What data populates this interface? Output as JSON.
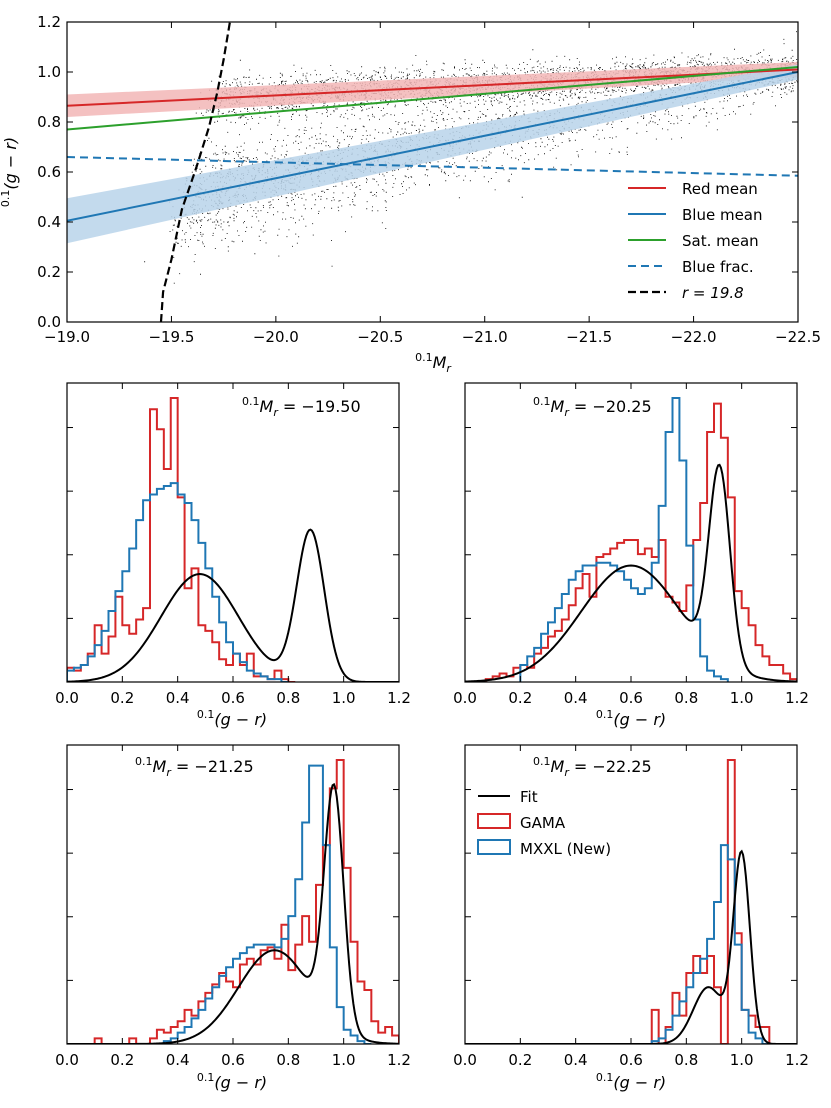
{
  "figure": {
    "title": ""
  },
  "chart_data": [
    {
      "id": "main",
      "type": "scatter",
      "xlabel_sup": "0.1",
      "xlabel_main": "M",
      "xlabel_sub": "r",
      "ylabel_sup": "0.1",
      "ylabel_main": "(g − r)",
      "xlim": [
        -19.0,
        -22.5
      ],
      "ylim": [
        0.0,
        1.2
      ],
      "xticks": [
        -19.0,
        -19.5,
        -20.0,
        -20.5,
        -21.0,
        -21.5,
        -22.0,
        -22.5
      ],
      "xtick_labels": [
        "−19.0",
        "−19.5",
        "−20.0",
        "−20.5",
        "−21.0",
        "−21.5",
        "−22.0",
        "−22.5"
      ],
      "yticks": [
        0.0,
        0.2,
        0.4,
        0.6,
        0.8,
        1.0,
        1.2
      ],
      "ytick_labels": [
        "0.0",
        "0.2",
        "0.4",
        "0.6",
        "0.8",
        "1.0",
        "1.2"
      ],
      "series": [
        {
          "name": "Red mean",
          "style": "solid",
          "color": "#d62728",
          "x": [
            -19.0,
            -22.5
          ],
          "y": [
            0.865,
            1.01
          ],
          "band_half_width": [
            0.045,
            0.03
          ]
        },
        {
          "name": "Blue mean",
          "style": "solid",
          "color": "#1f77b4",
          "x": [
            -19.0,
            -22.5
          ],
          "y": [
            0.405,
            1.0
          ],
          "band_half_width": [
            0.09,
            0.03
          ]
        },
        {
          "name": "Sat. mean",
          "style": "solid",
          "color": "#2ca02c",
          "x": [
            -19.0,
            -22.5
          ],
          "y": [
            0.77,
            1.02
          ]
        },
        {
          "name": "Blue frac.",
          "style": "dashed",
          "color": "#1f77b4",
          "x": [
            -19.0,
            -22.5
          ],
          "y": [
            0.66,
            0.585
          ]
        },
        {
          "name": "r = 19.8",
          "style": "dashed",
          "color": "#000000",
          "x": [
            -19.45,
            -19.46,
            -19.5,
            -19.55,
            -19.62,
            -19.68,
            -19.72,
            -19.75,
            -19.78
          ],
          "y": [
            0.0,
            0.12,
            0.25,
            0.45,
            0.62,
            0.78,
            0.92,
            1.05,
            1.2
          ]
        }
      ],
      "legend": {
        "position": "lower-right",
        "entries": [
          "Red mean",
          "Blue mean",
          "Sat. mean",
          "Blue frac.",
          "r = 19.8"
        ]
      },
      "legend_r_label": "r = 19.8",
      "scatter_note": "dense black point cloud of galaxies"
    },
    {
      "id": "h1",
      "type": "histogram",
      "annotation_sup": "0.1",
      "annotation_main": "M",
      "annotation_sub": "r",
      "annotation_value": " = −19.50",
      "xlabel_sup": "0.1",
      "xlabel_main": "(g − r)",
      "xlim": [
        0.0,
        1.2
      ],
      "ylim": [
        0,
        1.0
      ],
      "xticks": [
        0.0,
        0.2,
        0.4,
        0.6,
        0.8,
        1.0,
        1.2
      ],
      "xtick_labels": [
        "0.0",
        "0.2",
        "0.4",
        "0.6",
        "0.8",
        "1.0",
        "1.2"
      ],
      "bin_width": 0.025,
      "gama_bin_start": 0.0,
      "gama": [
        0.05,
        0.04,
        0.06,
        0.1,
        0.2,
        0.1,
        0.16,
        0.3,
        0.2,
        0.17,
        0.22,
        0.26,
        0.96,
        0.89,
        0.75,
        1.0,
        0.65,
        0.33,
        0.4,
        0.2,
        0.18,
        0.14,
        0.08,
        0.06,
        0.1,
        0.06,
        0.1,
        0.02,
        0.02,
        0.01,
        0.04,
        0.01,
        0.0
      ],
      "mxxl_bin_start": 0.0,
      "mxxl": [
        0.04,
        0.05,
        0.06,
        0.09,
        0.13,
        0.18,
        0.25,
        0.32,
        0.39,
        0.47,
        0.57,
        0.64,
        0.66,
        0.68,
        0.69,
        0.7,
        0.66,
        0.63,
        0.57,
        0.49,
        0.4,
        0.3,
        0.21,
        0.14,
        0.1,
        0.07,
        0.04,
        0.03,
        0.02,
        0.01,
        0.01,
        0.0
      ],
      "fit": {
        "components": [
          {
            "mu": 0.48,
            "sigma": 0.14,
            "amp": 0.38
          },
          {
            "mu": 0.88,
            "sigma": 0.05,
            "amp": 0.53
          }
        ]
      }
    },
    {
      "id": "h2",
      "type": "histogram",
      "annotation_sup": "0.1",
      "annotation_main": "M",
      "annotation_sub": "r",
      "annotation_value": " = −20.25",
      "xlabel_sup": "0.1",
      "xlabel_main": "(g − r)",
      "xlim": [
        0.0,
        1.2
      ],
      "ylim": [
        0,
        1.0
      ],
      "xticks": [
        0.0,
        0.2,
        0.4,
        0.6,
        0.8,
        1.0,
        1.2
      ],
      "xtick_labels": [
        "0.0",
        "0.2",
        "0.4",
        "0.6",
        "0.8",
        "1.0",
        "1.2"
      ],
      "bin_width": 0.025,
      "gama_bin_start": 0.0,
      "gama": [
        0.0,
        0.0,
        0.0,
        0.01,
        0.02,
        0.03,
        0.02,
        0.05,
        0.06,
        0.05,
        0.1,
        0.12,
        0.16,
        0.18,
        0.22,
        0.27,
        0.33,
        0.38,
        0.3,
        0.44,
        0.45,
        0.47,
        0.49,
        0.5,
        0.5,
        0.45,
        0.47,
        0.44,
        0.5,
        0.3,
        0.28,
        0.25,
        0.34,
        0.5,
        0.63,
        0.88,
        0.98,
        0.86,
        0.65,
        0.32,
        0.26,
        0.2,
        0.13,
        0.09,
        0.06,
        0.06,
        0.03,
        0.01
      ],
      "mxxl_bin_start": 0.2,
      "mxxl": [
        0.06,
        0.09,
        0.12,
        0.17,
        0.21,
        0.26,
        0.31,
        0.36,
        0.39,
        0.41,
        0.41,
        0.42,
        0.42,
        0.41,
        0.39,
        0.36,
        0.33,
        0.31,
        0.33,
        0.42,
        0.62,
        0.88,
        1.0,
        0.78,
        0.48,
        0.22,
        0.09,
        0.04,
        0.02,
        0.01
      ],
      "fit": {
        "components": [
          {
            "mu": 0.6,
            "sigma": 0.18,
            "amp": 0.41
          },
          {
            "mu": 0.92,
            "sigma": 0.038,
            "amp": 0.68
          }
        ]
      }
    },
    {
      "id": "h3",
      "type": "histogram",
      "annotation_sup": "0.1",
      "annotation_main": "M",
      "annotation_sub": "r",
      "annotation_value": " = −21.25",
      "xlabel_sup": "0.1",
      "xlabel_main": "(g − r)",
      "xlim": [
        0.0,
        1.2
      ],
      "ylim": [
        0,
        1.0
      ],
      "xticks": [
        0.0,
        0.2,
        0.4,
        0.6,
        0.8,
        1.0,
        1.2
      ],
      "xtick_labels": [
        "0.0",
        "0.2",
        "0.4",
        "0.6",
        "0.8",
        "1.0",
        "1.2"
      ],
      "bin_width": 0.025,
      "gama_bin_start": 0.1,
      "gama": [
        0.02,
        0.0,
        0.0,
        0.0,
        0.0,
        0.02,
        0.0,
        0.0,
        0.02,
        0.05,
        0.04,
        0.06,
        0.08,
        0.12,
        0.1,
        0.15,
        0.18,
        0.21,
        0.25,
        0.22,
        0.2,
        0.28,
        0.3,
        0.28,
        0.33,
        0.34,
        0.3,
        0.42,
        0.26,
        0.35,
        0.45,
        0.36,
        0.56,
        0.7,
        0.9,
        1.0,
        0.62,
        0.36,
        0.22,
        0.19,
        0.08,
        0.04,
        0.06,
        0.03
      ],
      "mxxl_bin_start": 0.35,
      "mxxl": [
        0.01,
        0.02,
        0.04,
        0.06,
        0.09,
        0.12,
        0.16,
        0.2,
        0.24,
        0.27,
        0.3,
        0.32,
        0.34,
        0.35,
        0.35,
        0.35,
        0.34,
        0.37,
        0.45,
        0.58,
        0.78,
        0.98,
        0.98,
        0.7,
        0.34,
        0.13,
        0.05,
        0.03,
        0.01,
        0.0
      ],
      "fit": {
        "components": [
          {
            "mu": 0.75,
            "sigma": 0.13,
            "amp": 0.33
          },
          {
            "mu": 0.965,
            "sigma": 0.035,
            "amp": 0.83
          }
        ]
      }
    },
    {
      "id": "h4",
      "type": "histogram",
      "annotation_sup": "0.1",
      "annotation_main": "M",
      "annotation_sub": "r",
      "annotation_value": " = −22.25",
      "xlabel_sup": "0.1",
      "xlabel_main": "(g − r)",
      "xlim": [
        0.0,
        1.2
      ],
      "ylim": [
        0,
        1.0
      ],
      "xticks": [
        0.0,
        0.2,
        0.4,
        0.6,
        0.8,
        1.0,
        1.2
      ],
      "xtick_labels": [
        "0.0",
        "0.2",
        "0.4",
        "0.6",
        "0.8",
        "1.0",
        "1.2"
      ],
      "bin_width": 0.025,
      "gama_bin_start": 0.675,
      "gama": [
        0.12,
        0.0,
        0.06,
        0.18,
        0.1,
        0.25,
        0.31,
        0.25,
        0.31,
        0.2,
        0.0,
        1.0,
        0.39,
        0.12,
        0.1,
        0.06,
        0.06
      ],
      "mxxl_bin_start": 0.65,
      "mxxl": [
        0.0,
        0.01,
        0.02,
        0.05,
        0.1,
        0.15,
        0.2,
        0.25,
        0.3,
        0.37,
        0.5,
        0.7,
        0.65,
        0.35,
        0.12,
        0.04,
        0.02,
        0.0
      ],
      "fit": {
        "components": [
          {
            "mu": 0.88,
            "sigma": 0.055,
            "amp": 0.2
          },
          {
            "mu": 1.0,
            "sigma": 0.03,
            "amp": 0.66
          }
        ]
      },
      "legend": {
        "position": "upper-left",
        "entries": [
          "Fit",
          "GAMA",
          "MXXL (New)"
        ]
      }
    }
  ],
  "colors": {
    "red": "#d62728",
    "blue": "#1f77b4",
    "green": "#2ca02c",
    "fill_red": "#f2b6b6",
    "fill_blue": "#b8d4ea",
    "black": "#000000"
  }
}
